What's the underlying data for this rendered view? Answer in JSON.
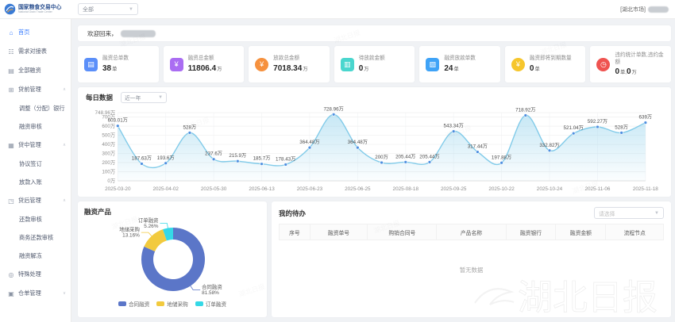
{
  "header": {
    "logo_title": "国家粮食交易中心",
    "logo_subtitle": "National Grain Trade Center",
    "market_select_value": "全部",
    "market_label": "[湖北市场]"
  },
  "sidebar": {
    "items": [
      {
        "id": "home",
        "label": "首页",
        "icon": "home-icon",
        "active": true
      },
      {
        "id": "demand-docking-table",
        "label": "需求对接表",
        "icon": "user-icon"
      },
      {
        "id": "all-financing",
        "label": "全部融资",
        "icon": "document-icon"
      },
      {
        "id": "pre-loan-management",
        "label": "贷前管理",
        "icon": "folder-icon",
        "expanded": true,
        "children": [
          {
            "id": "adjust-allocate-bank",
            "label": "调整（分配）银行"
          },
          {
            "id": "financing-review",
            "label": "融资审核"
          }
        ]
      },
      {
        "id": "in-loan-management",
        "label": "贷中管理",
        "icon": "layers-icon",
        "expanded": true,
        "children": [
          {
            "id": "agreement-signing",
            "label": "协议签订"
          },
          {
            "id": "loan-disbursement-entry",
            "label": "放款入账"
          }
        ]
      },
      {
        "id": "post-loan-management",
        "label": "贷后管理",
        "icon": "grid-icon",
        "expanded": true,
        "children": [
          {
            "id": "repayment-review",
            "label": "还款审核"
          },
          {
            "id": "business-repayment-review",
            "label": "商务还款审核"
          },
          {
            "id": "financing-unfreeze",
            "label": "融资解冻"
          }
        ]
      },
      {
        "id": "special-processing",
        "label": "特殊处理",
        "icon": "target-icon"
      },
      {
        "id": "warehouse-receipt-management",
        "label": "仓单管理",
        "icon": "box-icon",
        "expanded": false,
        "children": []
      }
    ]
  },
  "welcome": {
    "greeting": "欢迎回来，"
  },
  "stats": [
    {
      "id": "total-financing-orders",
      "title": "融资总单数",
      "icon": "file-icon",
      "shape": "sq",
      "color": "#5b8ff9",
      "segments": [
        {
          "value": "38",
          "unit": "单"
        }
      ]
    },
    {
      "id": "total-financing-amount",
      "title": "融资总金额",
      "icon": "money-icon",
      "shape": "sq",
      "color": "#aa6df2",
      "segments": [
        {
          "value": "11806.4",
          "unit": "万"
        }
      ]
    },
    {
      "id": "total-loan-amount",
      "title": "放款总金额",
      "icon": "coin-icon",
      "shape": "rd",
      "color": "#f6913e",
      "segments": [
        {
          "value": "7018.34",
          "unit": "万"
        }
      ]
    },
    {
      "id": "pending-loan-amount",
      "title": "待放款金额",
      "icon": "wallet-icon",
      "shape": "sq",
      "color": "#4ad6ce",
      "segments": [
        {
          "value": "0",
          "unit": "万"
        }
      ]
    },
    {
      "id": "financing-loan-orders",
      "title": "融资放款单数",
      "icon": "card-icon",
      "shape": "sq",
      "color": "#3fa3f7",
      "segments": [
        {
          "value": "24",
          "unit": "单"
        }
      ]
    },
    {
      "id": "financing-expiring-count",
      "title": "融资即将到期数量",
      "icon": "gold-coin-icon",
      "shape": "rd",
      "color": "#f6c62d",
      "segments": [
        {
          "value": "0",
          "unit": "单"
        }
      ]
    },
    {
      "id": "default-stats",
      "title": "违约统计单数,违约金额",
      "icon": "clock-icon",
      "shape": "rd",
      "color": "#ef5350",
      "segments": [
        {
          "value": "0",
          "unit": "单,"
        },
        {
          "value": "0",
          "unit": "万"
        }
      ]
    }
  ],
  "chart_data": [
    {
      "type": "area",
      "title": "每日数据",
      "range_select_value": "近一年",
      "x_labels": [
        "2025-03-20",
        "2025-04-02",
        "2025-05-30",
        "2025-06-13",
        "2025-06-23",
        "2025-06-25",
        "2025-08-18",
        "2025-09-25",
        "2025-10-22",
        "2025-10-24",
        "2025-11-06",
        "2025-11-18"
      ],
      "values": [
        603.01,
        187.63,
        193.6,
        528,
        237.6,
        215.9,
        185.7,
        178.43,
        364.48,
        728.96,
        364.48,
        200,
        205.44,
        205.44,
        543.34,
        317.44,
        197.88,
        718.92,
        332.82,
        521.04,
        592.27,
        528,
        639
      ],
      "point_labels": [
        "603.01万",
        "187.63万",
        "193.6万",
        "528万",
        "237.6万",
        "215.9万",
        "185.7万",
        "178.43万",
        "364.48万",
        "728.96万",
        "364.48万",
        "200万",
        "205.44万",
        "205.44万",
        "543.34万",
        "317.44万",
        "197.88万",
        "718.92万",
        "332.82万",
        "521.04万",
        "592.27万",
        "528万",
        "639万"
      ],
      "y_ticks": [
        {
          "v": 0,
          "label": "0万"
        },
        {
          "v": 100,
          "label": "100万"
        },
        {
          "v": 200,
          "label": "200万"
        },
        {
          "v": 300,
          "label": "300万"
        },
        {
          "v": 400,
          "label": "400万"
        },
        {
          "v": 500,
          "label": "500万"
        },
        {
          "v": 600,
          "label": "600万"
        },
        {
          "v": 700,
          "label": "700万"
        },
        {
          "v": 748.96,
          "label": "748.96万"
        }
      ],
      "ylim": [
        0,
        748.96
      ],
      "unit": "万",
      "grid": true,
      "line_color": "#82cbe9",
      "dot_color": "#4e8fe0"
    },
    {
      "type": "pie",
      "title": "融资产品",
      "slices": [
        {
          "id": "contract-financing",
          "name": "合同融资",
          "pct": 81.58,
          "pct_label": "81.58%",
          "color": "#5b76c8"
        },
        {
          "id": "reserve-purchase",
          "name": "地储采购",
          "pct": 13.16,
          "pct_label": "13.16%",
          "color": "#f2ca3e"
        },
        {
          "id": "order-financing",
          "name": "订单融资",
          "pct": 5.26,
          "pct_label": "5.26%",
          "color": "#35d8e6"
        }
      ],
      "legend_position": "bottom"
    }
  ],
  "todo": {
    "title": "我的待办",
    "filter_placeholder": "请选择",
    "columns": [
      {
        "id": "index",
        "label": "序号"
      },
      {
        "id": "financing-order-no",
        "label": "融资单号"
      },
      {
        "id": "purchase-contract-no",
        "label": "购销合同号"
      },
      {
        "id": "product-name",
        "label": "产品名称"
      },
      {
        "id": "financing-bank",
        "label": "融资银行"
      },
      {
        "id": "financing-amount",
        "label": "融资金额"
      },
      {
        "id": "process-node",
        "label": "流程节点"
      }
    ],
    "empty_text": "暂无数据"
  },
  "watermark": {
    "brand_text": "湖北日报",
    "tile_text": "湖北日报"
  }
}
